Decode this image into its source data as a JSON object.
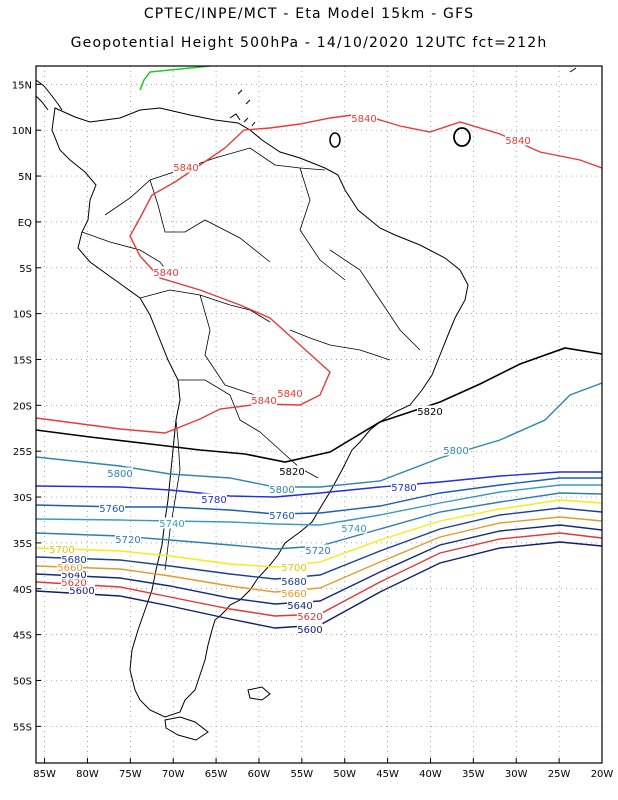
{
  "header": {
    "title_line1": "CPTEC/INPE/MCT -  Eta Model 15km - GFS",
    "title_line2": "Geopotential Height 500hPa - 14/10/2020 12UTC fct=212h"
  },
  "axes": {
    "lat_labels": [
      "15N",
      "10N",
      "5N",
      "EQ",
      "5S",
      "10S",
      "15S",
      "20S",
      "25S",
      "30S",
      "35S",
      "40S",
      "45S",
      "50S",
      "55S"
    ],
    "lat_values": [
      15,
      10,
      5,
      0,
      -5,
      -10,
      -15,
      -20,
      -25,
      -30,
      -35,
      -40,
      -45,
      -50,
      -55
    ],
    "lon_labels": [
      "85W",
      "80W",
      "75W",
      "70W",
      "65W",
      "60W",
      "55W",
      "50W",
      "45W",
      "40W",
      "35W",
      "30W",
      "25W",
      "20W"
    ],
    "lon_values": [
      -85,
      -80,
      -75,
      -70,
      -65,
      -60,
      -55,
      -50,
      -45,
      -40,
      -35,
      -30,
      -25,
      -20
    ],
    "lon_range": [
      -86,
      -20
    ],
    "lat_range": [
      -59,
      17
    ]
  },
  "contours": [
    {
      "value": 5600,
      "label": "5600",
      "color": "#101e6e"
    },
    {
      "value": 5620,
      "label": "5620",
      "color": "#e03838"
    },
    {
      "value": 5640,
      "label": "5640",
      "color": "#132a7c"
    },
    {
      "value": 5660,
      "label": "5660",
      "color": "#e39a2c"
    },
    {
      "value": 5680,
      "label": "5680",
      "color": "#1d3f8f"
    },
    {
      "value": 5700,
      "label": "5700",
      "color": "#f2ee10"
    },
    {
      "value": 5720,
      "label": "5720",
      "color": "#2e7fae"
    },
    {
      "value": 5740,
      "label": "5740",
      "color": "#3a9bbf"
    },
    {
      "value": 5760,
      "label": "5760",
      "color": "#1b5db0"
    },
    {
      "value": 5780,
      "label": "5780",
      "color": "#2030e0"
    },
    {
      "value": 5800,
      "label": "5800",
      "color": "#2f86b0"
    },
    {
      "value": 5820,
      "label": "5820",
      "color": "#000000"
    },
    {
      "value": 5840,
      "label": "5840",
      "color": "#e83a3a"
    }
  ]
}
